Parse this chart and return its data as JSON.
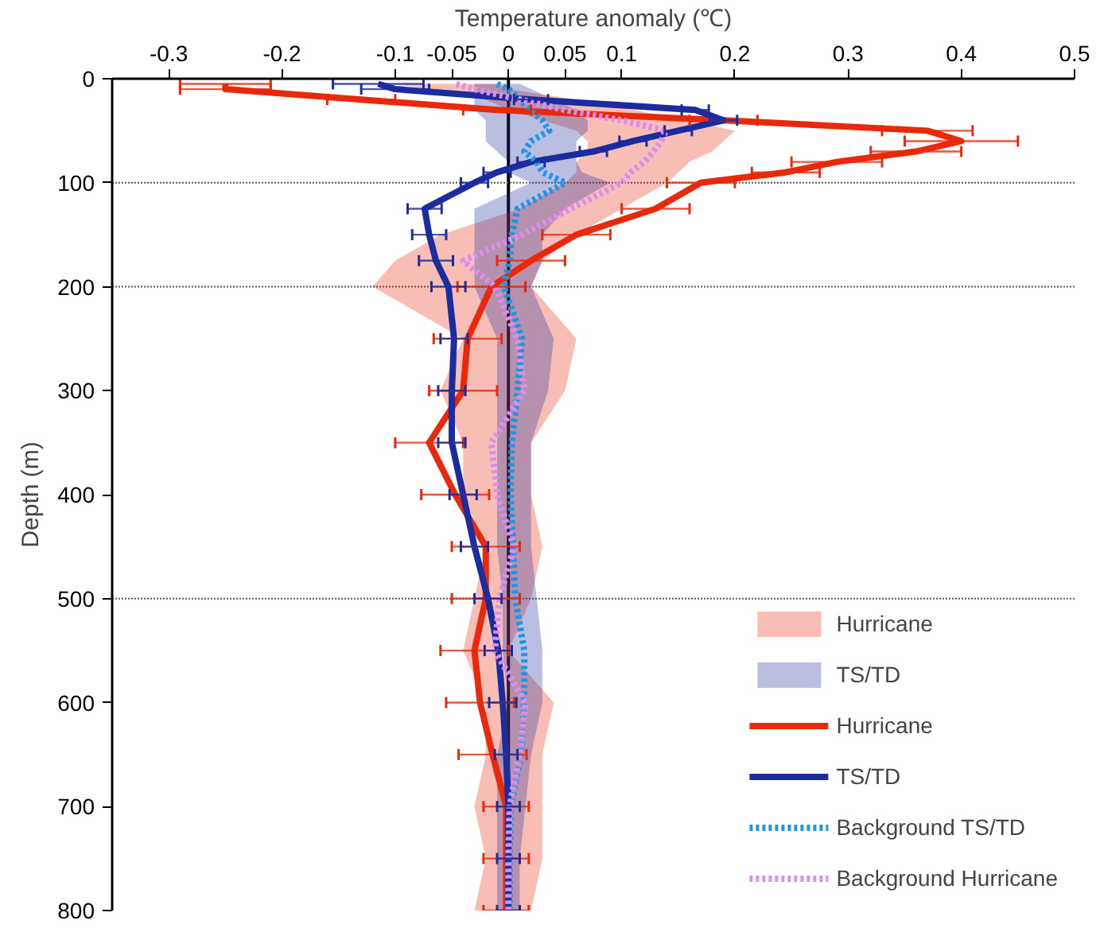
{
  "chart_data": {
    "type": "line",
    "orientation": "horizontal",
    "xlabel": "Temperature anomaly (℃)",
    "ylabel": "Depth (m)",
    "x": [
      5,
      10,
      20,
      30,
      40,
      50,
      60,
      70,
      80,
      90,
      100,
      125,
      150,
      175,
      200,
      250,
      300,
      350,
      400,
      450,
      500,
      550,
      600,
      650,
      700,
      750,
      800
    ],
    "xlim": [
      -0.35,
      0.5
    ],
    "xticks": [
      -0.3,
      -0.2,
      -0.1,
      -0.05,
      0,
      0.05,
      0.1,
      0.2,
      0.3,
      0.4,
      0.5
    ],
    "ylim": [
      800,
      0
    ],
    "yticks": [
      0,
      100,
      200,
      300,
      400,
      500,
      600,
      700,
      800
    ],
    "legend": "bottom right",
    "grid": false,
    "ref_lines": [
      {
        "axis": "x",
        "value": 0,
        "color": "#000000",
        "line_style": "solid"
      },
      {
        "axis": "y",
        "value": 100,
        "color": "#555555",
        "line_style": "dotted"
      },
      {
        "axis": "y",
        "value": 200,
        "color": "#555555",
        "line_style": "dotted"
      },
      {
        "axis": "y",
        "value": 500,
        "color": "#555555",
        "line_style": "dotted"
      }
    ],
    "series": [
      {
        "name": "Hurricane",
        "color": "#e8290b",
        "line_style": "solid",
        "values": [
          -0.25,
          -0.25,
          -0.13,
          -0.01,
          0.19,
          0.37,
          0.4,
          0.36,
          0.29,
          0.245,
          0.17,
          0.13,
          0.06,
          0.02,
          -0.015,
          -0.036,
          -0.04,
          -0.07,
          -0.047,
          -0.02,
          -0.02,
          -0.03,
          -0.025,
          -0.014,
          -0.002,
          -0.002,
          -0.002
        ],
        "errors": [
          0.04,
          0.04,
          0.03,
          0.03,
          0.03,
          0.04,
          0.05,
          0.04,
          0.04,
          0.03,
          0.03,
          0.03,
          0.03,
          0.03,
          0.03,
          0.03,
          0.03,
          0.03,
          0.03,
          0.03,
          0.03,
          0.03,
          0.03,
          0.03,
          0.02,
          0.02,
          0.02
        ],
        "lower": [
          -0.1,
          -0.07,
          -0.02,
          0.0,
          0.03,
          0.06,
          0.07,
          0.07,
          0.06,
          0.06,
          0.05,
          0.01,
          -0.06,
          -0.1,
          -0.12,
          -0.04,
          -0.06,
          -0.04,
          -0.04,
          -0.02,
          -0.03,
          -0.04,
          -0.02,
          -0.02,
          -0.03,
          -0.02,
          -0.03
        ],
        "upper": [
          -0.01,
          0.0,
          0.06,
          0.11,
          0.16,
          0.2,
          0.19,
          0.18,
          0.16,
          0.15,
          0.14,
          0.1,
          0.06,
          0.03,
          0.02,
          0.06,
          0.05,
          0.02,
          0.02,
          0.03,
          0.02,
          0.0,
          0.04,
          0.03,
          0.03,
          0.03,
          0.02
        ]
      },
      {
        "name": "TS/TD",
        "color": "#1a2c9e",
        "line_style": "solid",
        "values": [
          -0.115,
          -0.1,
          0.02,
          0.165,
          0.19,
          0.15,
          0.11,
          0.075,
          0.02,
          -0.01,
          -0.03,
          -0.074,
          -0.07,
          -0.064,
          -0.053,
          -0.048,
          -0.05,
          -0.05,
          -0.04,
          -0.03,
          -0.018,
          -0.009,
          -0.005,
          -0.002,
          0,
          0,
          0
        ],
        "errors": [
          0.04,
          0.03,
          0.015,
          0.012,
          0.012,
          0.012,
          0.012,
          0.012,
          0.012,
          0.012,
          0.012,
          0.015,
          0.015,
          0.015,
          0.015,
          0.012,
          0.012,
          0.012,
          0.012,
          0.012,
          0.012,
          0.012,
          0.012,
          0.01,
          0.01,
          0.01,
          0.01
        ],
        "lower": [
          -0.03,
          -0.03,
          -0.03,
          -0.03,
          -0.02,
          -0.02,
          -0.02,
          -0.01,
          0.0,
          0.0,
          0.02,
          -0.03,
          -0.03,
          -0.03,
          -0.03,
          -0.01,
          -0.01,
          -0.01,
          -0.01,
          -0.01,
          -0.005,
          -0.005,
          0.0,
          -0.01,
          -0.01,
          -0.01,
          -0.01
        ],
        "upper": [
          0.01,
          0.02,
          0.04,
          0.06,
          0.07,
          0.07,
          0.06,
          0.06,
          0.06,
          0.065,
          0.09,
          0.05,
          0.03,
          0.03,
          0.02,
          0.04,
          0.035,
          0.02,
          0.02,
          0.02,
          0.025,
          0.03,
          0.03,
          0.02,
          0.015,
          0.01,
          0.01
        ]
      },
      {
        "name": "Background TS/TD",
        "color": "#1e96e6",
        "line_style": "dotted",
        "values": [
          -0.01,
          0,
          0.01,
          0.019,
          0.03,
          0.036,
          0.02,
          0.014,
          0.025,
          0.03,
          0.05,
          0.008,
          0.003,
          0.001,
          -0.004,
          0.012,
          0.008,
          0.003,
          0.002,
          0.004,
          0.006,
          0.014,
          0.014,
          0.011,
          0.002,
          0.001,
          0.001
        ]
      },
      {
        "name": "Background Hurricane",
        "color": "#d98ef0",
        "line_style": "dotted",
        "values": [
          -0.046,
          -0.03,
          0.01,
          0.05,
          0.1,
          0.139,
          0.135,
          0.128,
          0.12,
          0.108,
          0.1,
          0.055,
          0.012,
          -0.04,
          -0.012,
          0.008,
          0.014,
          -0.015,
          -0.01,
          0.005,
          -0.008,
          -0.012,
          0.015,
          0.01,
          0.001,
          0,
          0
        ]
      }
    ]
  }
}
